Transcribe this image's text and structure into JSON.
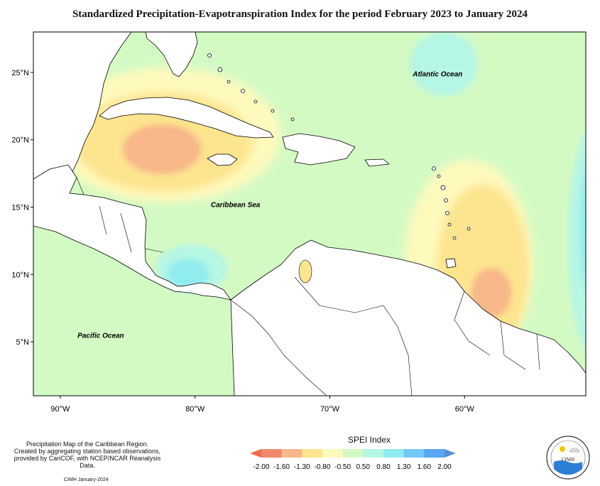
{
  "title": "Standardized Precipitation-Evapotranspiration Index for the period February 2023 to January 2024",
  "map": {
    "lon_range": [
      -92,
      -51
    ],
    "lat_range": [
      1,
      28
    ],
    "lat_ticks": [
      "25°N",
      "20°N",
      "15°N",
      "10°N",
      "5°N"
    ],
    "lat_values": [
      25,
      20,
      15,
      10,
      5
    ],
    "lon_ticks": [
      "90°W",
      "80°W",
      "70°W",
      "60°W"
    ],
    "lon_values": [
      -90,
      -80,
      -70,
      -60
    ],
    "labels": [
      {
        "text": "Atlantic Ocean",
        "lon": -62,
        "lat": 24.7
      },
      {
        "text": "Caribbean Sea",
        "lon": -77,
        "lat": 15
      },
      {
        "text": "Pacific Ocean",
        "lon": -87,
        "lat": 5.3
      }
    ],
    "colors": {
      "background": "#d4fac4",
      "land": "#ffffff",
      "coast": "#000000"
    }
  },
  "legend": {
    "title": "SPEI Index",
    "ticks": [
      "-2.00",
      "-1.60",
      "-1.30",
      "-0.80",
      "-0.50",
      "0.50",
      "0.80",
      "1.30",
      "1.60",
      "2.00"
    ],
    "colors": [
      "#f08a6a",
      "#f8b88a",
      "#fde48e",
      "#fef9bd",
      "#d4fac4",
      "#b6f6e4",
      "#90ecee",
      "#74c8f6",
      "#5aa6f2"
    ]
  },
  "footnote": {
    "lines": [
      "Precipitation Map of the Caribbean Region.",
      "Created by aggregating station based observations,",
      "provided by CariCOF, with NCEP/NCAR Reanalysis Data."
    ],
    "credit": "CIMH January-2024"
  },
  "logo": {
    "text": "CIMH"
  }
}
